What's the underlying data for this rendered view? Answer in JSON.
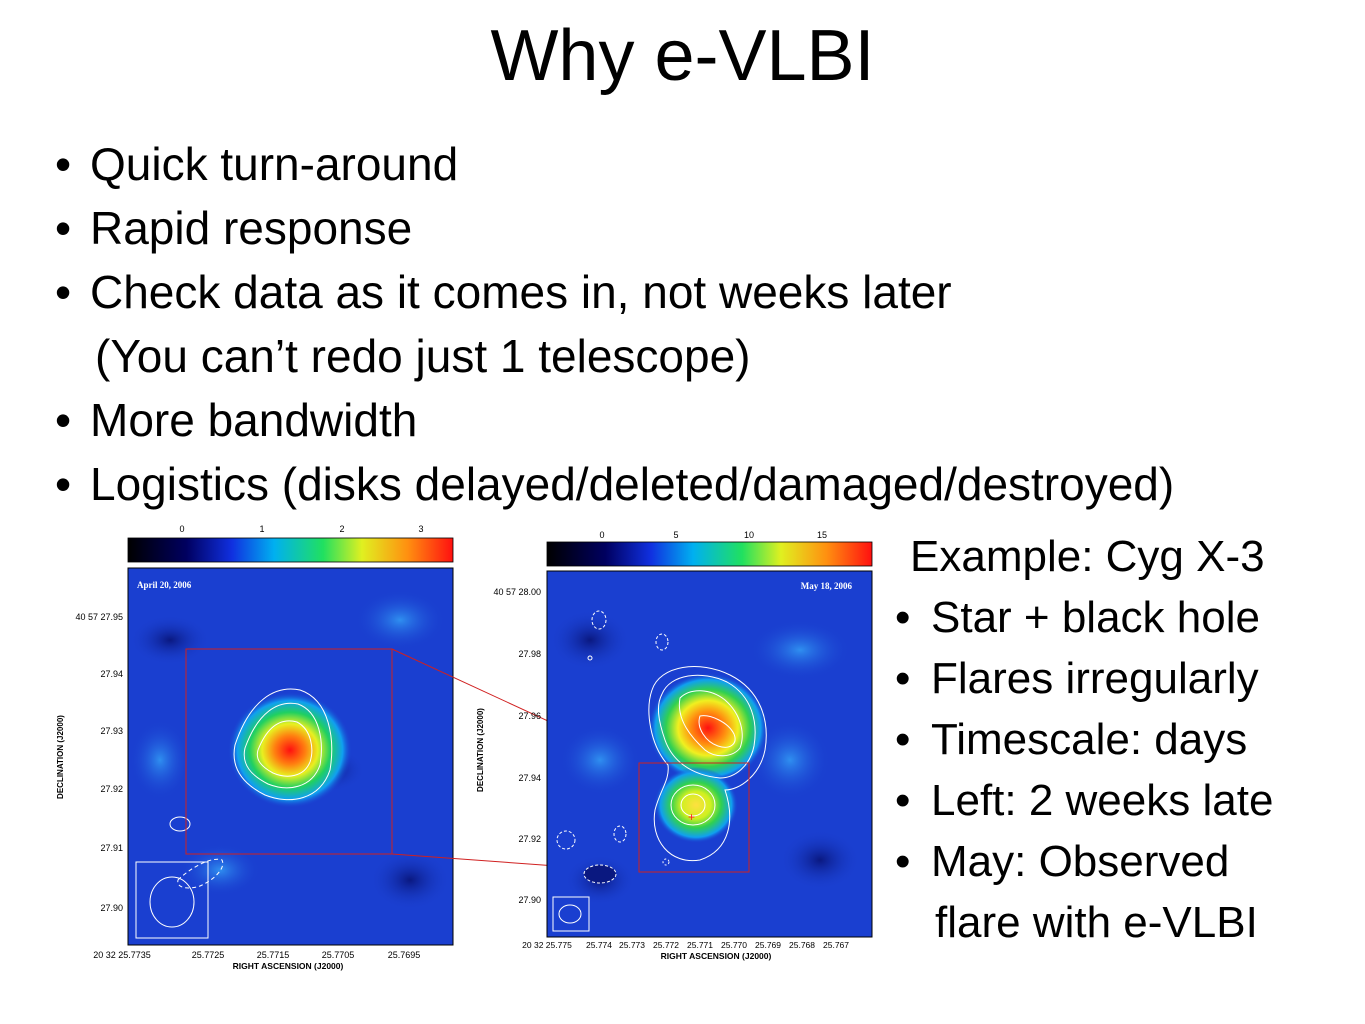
{
  "slide": {
    "title": "Why e-VLBI",
    "bullets": [
      "Quick turn-around",
      "Rapid response",
      "Check data as it comes in, not weeks later",
      "(You can’t redo just 1 telescope)",
      "More bandwidth",
      "Logistics (disks delayed/deleted/damaged/destroyed)"
    ],
    "example": {
      "heading": "Example:  Cyg X-3",
      "items": [
        "Star + black hole",
        "Flares irregularly",
        "Timescale: days",
        "Left: 2 weeks late",
        "May: Observed",
        "flare with e-VLBI"
      ]
    }
  },
  "left_map": {
    "date_label": "April 20, 2006",
    "colorbar_ticks": [
      "0",
      "1",
      "2",
      "3"
    ],
    "y_ticks": [
      "40 57 27.95",
      "27.94",
      "27.93",
      "27.92",
      "27.91",
      "27.90"
    ],
    "x_ticks": [
      "20 32 25.7735",
      "25.7725",
      "25.7715",
      "25.7705",
      "25.7695"
    ],
    "ylabel": "DECLINATION (J2000)",
    "xlabel": "RIGHT ASCENSION (J2000)"
  },
  "right_map": {
    "date_label": "May 18, 2006",
    "colorbar_ticks": [
      "0",
      "5",
      "10",
      "15"
    ],
    "y_ticks": [
      "40 57 28.00",
      "27.98",
      "27.96",
      "27.94",
      "27.92",
      "27.90"
    ],
    "x_ticks": [
      "20 32 25.775",
      "25.774",
      "25.773",
      "25.772",
      "25.771",
      "25.770",
      "25.769",
      "25.768",
      "25.767"
    ],
    "ylabel": "DECLINATION (J2000)",
    "xlabel": "RIGHT ASCENSION (J2000)"
  },
  "colors": {
    "map_background": "#1a3fd0",
    "zoom_box": "#d02020",
    "contour": "#ffffff"
  }
}
